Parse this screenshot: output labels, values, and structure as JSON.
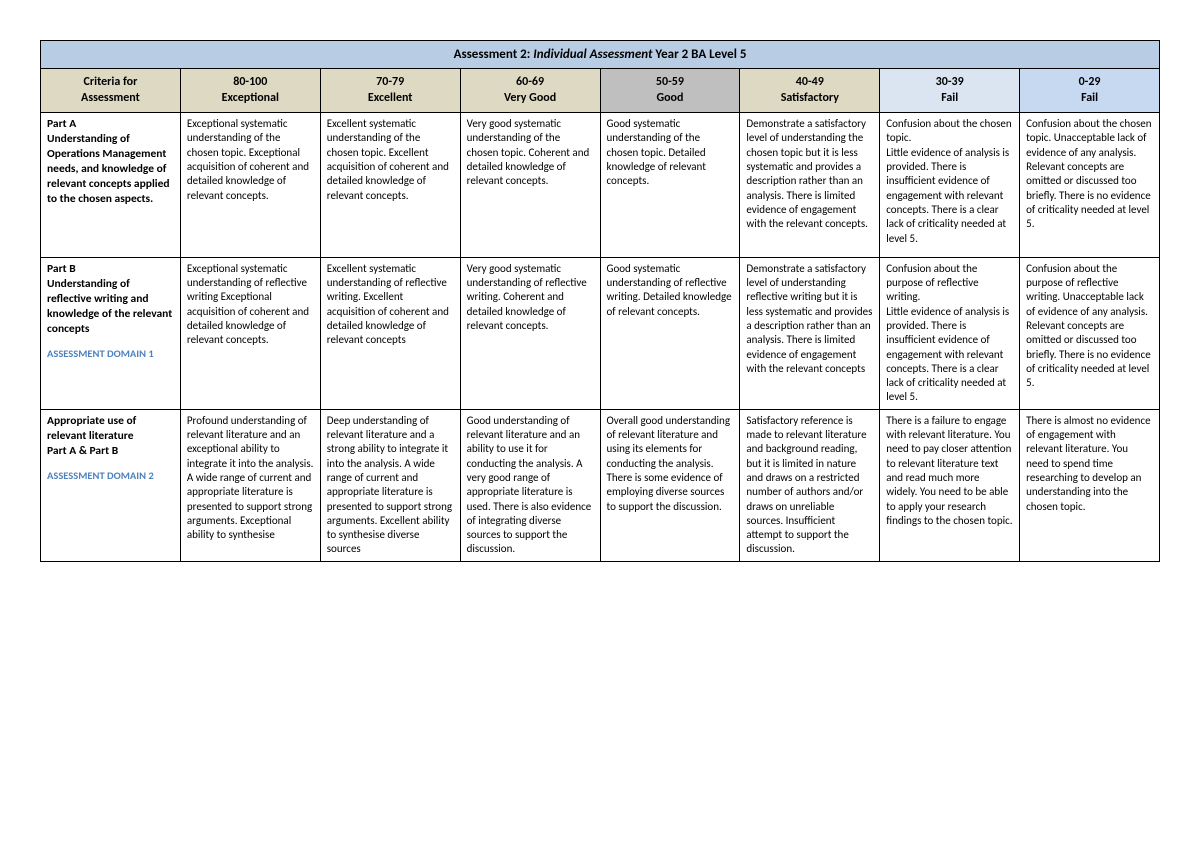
{
  "title_prefix": "Assessment 2: ",
  "title_italic": "Individual Assessment",
  "title_suffix": " Year 2 BA Level 5",
  "columns": [
    {
      "range": "Criteria for",
      "label": "Assessment"
    },
    {
      "range": "80-100",
      "label": "Exceptional"
    },
    {
      "range": "70-79",
      "label": "Excellent"
    },
    {
      "range": "60-69",
      "label": "Very Good"
    },
    {
      "range": "50-59",
      "label": "Good"
    },
    {
      "range": "40-49",
      "label": "Satisfactory"
    },
    {
      "range": "30-39",
      "label": "Fail"
    },
    {
      "range": "0-29",
      "label": "Fail"
    }
  ],
  "rows": [
    {
      "criteria": "Part A\nUnderstanding of Operations Management needs, and knowledge of relevant concepts applied to the chosen aspects.",
      "domain": "",
      "cells": [
        "Exceptional systematic understanding of the chosen topic. Exceptional acquisition of coherent and detailed knowledge of relevant concepts.",
        "Excellent systematic understanding of the chosen topic. Excellent acquisition of coherent and detailed knowledge of relevant concepts.",
        "Very good systematic understanding of the chosen topic. Coherent and detailed knowledge of relevant concepts.",
        "Good systematic understanding of the chosen topic. Detailed knowledge of relevant concepts.",
        "Demonstrate a satisfactory level of understanding the chosen topic but it is less systematic and provides a description rather than an analysis. There is limited evidence of engagement with the relevant concepts.",
        "Confusion about the chosen topic.\nLittle evidence of analysis is provided. There is insufficient evidence of engagement with relevant concepts. There is a clear lack of criticality needed at level 5.",
        "Confusion about the chosen topic. Unacceptable lack of evidence of any analysis.\nRelevant concepts are omitted or discussed too briefly. There is no evidence of criticality needed at level 5."
      ]
    },
    {
      "criteria": "Part B\nUnderstanding of reflective writing and knowledge of the relevant concepts",
      "domain": "ASSESSMENT DOMAIN 1",
      "cells": [
        "Exceptional systematic understanding of reflective writing Exceptional acquisition of coherent and detailed knowledge of relevant concepts.",
        "Excellent systematic understanding of reflective writing. Excellent acquisition of coherent and detailed knowledge of relevant concepts",
        "Very good systematic understanding of reflective writing. Coherent and detailed knowledge of relevant concepts.",
        "Good systematic understanding of reflective writing. Detailed knowledge of relevant concepts.",
        "Demonstrate a satisfactory level of understanding reflective writing but it is less systematic and provides a description rather than an analysis. There is limited evidence of engagement with the relevant concepts",
        "Confusion about the purpose of reflective writing.\nLittle evidence of analysis is provided. There is insufficient evidence of engagement with relevant concepts. There is a clear lack of criticality needed at level 5.",
        "Confusion about the purpose of reflective writing. Unacceptable lack of evidence of any analysis.\nRelevant concepts are omitted or discussed too briefly. There is no evidence of criticality needed at level 5."
      ]
    },
    {
      "criteria": "Appropriate use of relevant literature\nPart A & Part B",
      "domain": "ASSESSMENT DOMAIN 2",
      "cells": [
        "Profound understanding of relevant literature and an exceptional ability to integrate it into the analysis. A wide range of current and appropriate literature is presented to support strong arguments. Exceptional ability to synthesise",
        "Deep understanding of relevant literature and a strong ability to integrate it into the analysis.  A wide range of current and appropriate literature is presented to support strong arguments. Excellent ability to synthesise diverse sources",
        "Good understanding of relevant literature and an ability to use it for conducting the analysis. A very good range of appropriate literature is used. There is also evidence of integrating diverse sources to support the discussion.",
        "Overall good understanding of relevant literature and using its elements for conducting the analysis. There is some evidence of employing diverse sources to support the discussion.",
        "Satisfactory reference is made to relevant literature and background reading, but it is limited in nature and draws on a restricted number of authors and/or draws on unreliable sources. Insufficient attempt to support the discussion.",
        "There is a failure to engage with relevant literature. You need to pay closer attention to relevant literature text and read much more widely. You need to be able to apply your research findings to the chosen topic.",
        "There is almost no evidence of engagement with relevant literature. You need to spend time researching to develop an understanding into the chosen topic."
      ]
    }
  ],
  "colors": {
    "title_bg": "#b8cce4",
    "header_tan": "#ddd9c3",
    "header_grey": "#bfbfbf",
    "header_blue_light": "#dbe5f1",
    "header_blue": "#c6d9f0",
    "domain_text": "#4f81bd",
    "border": "#000000"
  }
}
